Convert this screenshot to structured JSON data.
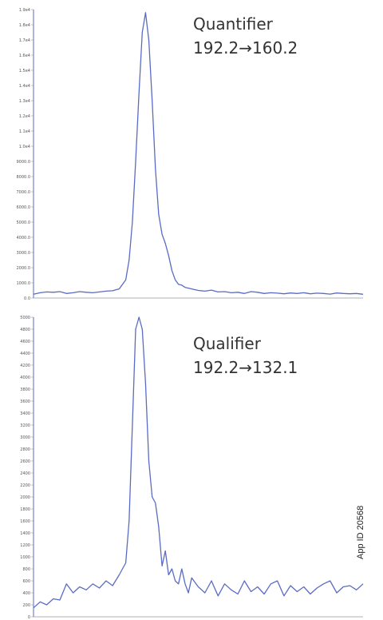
{
  "side_label": "App ID 20568",
  "colors": {
    "trace": "#5a6bc4",
    "axis": "#5a6bc4",
    "text": "#333333"
  },
  "chart_data": [
    {
      "type": "line",
      "title": "",
      "annotation": [
        "Quantifier",
        "192.2→160.2"
      ],
      "y_ticks": [
        "0.0",
        "1000.0",
        "2000.0",
        "3000.0",
        "4000.0",
        "5000.0",
        "6000.0",
        "7000.0",
        "8000.0",
        "9000.0",
        "1.0e4",
        "1.1e4",
        "1.2e4",
        "1.3e4",
        "1.4e4",
        "1.5e4",
        "1.6e4",
        "1.7e4",
        "1.8e4",
        "1.9e4"
      ],
      "ylim": [
        0,
        19000
      ],
      "xlim": [
        0,
        100
      ],
      "series": [
        {
          "x": [
            0,
            2,
            4,
            6,
            8,
            10,
            12,
            14,
            16,
            18,
            20,
            22,
            24,
            26,
            28,
            29,
            30,
            31,
            32,
            33,
            34,
            35,
            36,
            37,
            38,
            39,
            40,
            41,
            42,
            43,
            44,
            45,
            46,
            47,
            48,
            50,
            52,
            54,
            56,
            58,
            60,
            62,
            64,
            66,
            68,
            70,
            72,
            74,
            76,
            78,
            80,
            82,
            84,
            86,
            88,
            90,
            92,
            94,
            96,
            98,
            100
          ],
          "y": [
            250,
            350,
            400,
            380,
            420,
            300,
            350,
            420,
            380,
            350,
            400,
            450,
            480,
            600,
            1200,
            2500,
            5000,
            9000,
            13500,
            17500,
            18800,
            17000,
            13000,
            8500,
            5500,
            4200,
            3600,
            2800,
            1800,
            1200,
            900,
            850,
            700,
            650,
            600,
            500,
            450,
            520,
            400,
            420,
            350,
            380,
            300,
            420,
            380,
            300,
            350,
            320,
            280,
            330,
            300,
            350,
            280,
            320,
            300,
            260,
            330,
            300,
            280,
            300,
            250
          ]
        }
      ]
    },
    {
      "type": "line",
      "title": "",
      "annotation": [
        "Qualifier",
        "192.2→132.1"
      ],
      "y_ticks": [
        "0",
        "200",
        "400",
        "600",
        "800",
        "1000",
        "1200",
        "1400",
        "1600",
        "1800",
        "2000",
        "2200",
        "2400",
        "2600",
        "2800",
        "3000",
        "3200",
        "3400",
        "3600",
        "3800",
        "4000",
        "4200",
        "4400",
        "4600",
        "4800",
        "5000"
      ],
      "ylim": [
        0,
        5000
      ],
      "xlim": [
        0,
        100
      ],
      "series": [
        {
          "x": [
            0,
            2,
            4,
            6,
            8,
            10,
            12,
            14,
            16,
            18,
            20,
            22,
            24,
            26,
            28,
            29,
            30,
            31,
            32,
            33,
            34,
            35,
            36,
            37,
            38,
            39,
            40,
            41,
            42,
            43,
            44,
            45,
            46,
            47,
            48,
            50,
            52,
            54,
            56,
            58,
            60,
            62,
            64,
            66,
            68,
            70,
            72,
            74,
            76,
            78,
            80,
            82,
            84,
            86,
            88,
            90,
            92,
            94,
            96,
            98,
            100
          ],
          "y": [
            150,
            250,
            200,
            300,
            280,
            550,
            400,
            500,
            450,
            550,
            480,
            600,
            520,
            700,
            900,
            1600,
            3200,
            4800,
            5000,
            4800,
            3900,
            2600,
            2000,
            1900,
            1500,
            850,
            1100,
            700,
            800,
            600,
            550,
            800,
            550,
            400,
            650,
            500,
            400,
            600,
            350,
            550,
            450,
            380,
            600,
            420,
            500,
            380,
            550,
            600,
            350,
            520,
            420,
            500,
            380,
            480,
            550,
            600,
            400,
            500,
            520,
            450,
            550
          ]
        }
      ]
    }
  ]
}
